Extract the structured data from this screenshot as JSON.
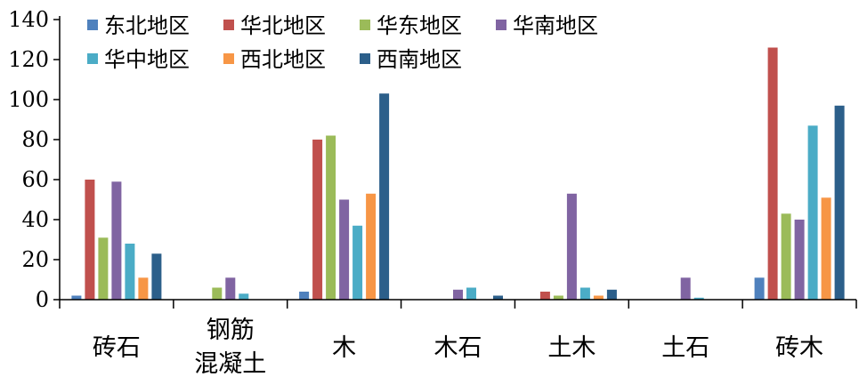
{
  "chart_data": {
    "type": "bar",
    "categories": [
      [
        "砖石"
      ],
      [
        "钢筋",
        "混凝土"
      ],
      [
        "木"
      ],
      [
        "木石"
      ],
      [
        "土木"
      ],
      [
        "土石"
      ],
      [
        "砖木"
      ]
    ],
    "series": [
      {
        "name": "东北地区",
        "color": "#4F81BD",
        "values": [
          2,
          0,
          4,
          0,
          0,
          0,
          11
        ]
      },
      {
        "name": "华北地区",
        "color": "#C0504D",
        "values": [
          60,
          0,
          80,
          0,
          4,
          0,
          126
        ]
      },
      {
        "name": "华东地区",
        "color": "#9BBB59",
        "values": [
          31,
          6,
          82,
          0,
          2,
          0,
          43
        ]
      },
      {
        "name": "华南地区",
        "color": "#8064A2",
        "values": [
          59,
          11,
          50,
          5,
          53,
          11,
          40
        ]
      },
      {
        "name": "华中地区",
        "color": "#4BACC6",
        "values": [
          28,
          3,
          37,
          6,
          6,
          1,
          87
        ]
      },
      {
        "name": "西北地区",
        "color": "#F79646",
        "values": [
          11,
          0,
          53,
          0,
          2,
          0,
          51
        ]
      },
      {
        "name": "西南地区",
        "color": "#2C5F8A",
        "values": [
          23,
          0,
          103,
          2,
          5,
          0,
          97
        ]
      }
    ],
    "yticks": [
      "0",
      "20",
      "40",
      "60",
      "80",
      "100",
      "120",
      "140"
    ],
    "ylim": [
      0,
      140
    ],
    "grid": false,
    "legend": "top-left"
  }
}
